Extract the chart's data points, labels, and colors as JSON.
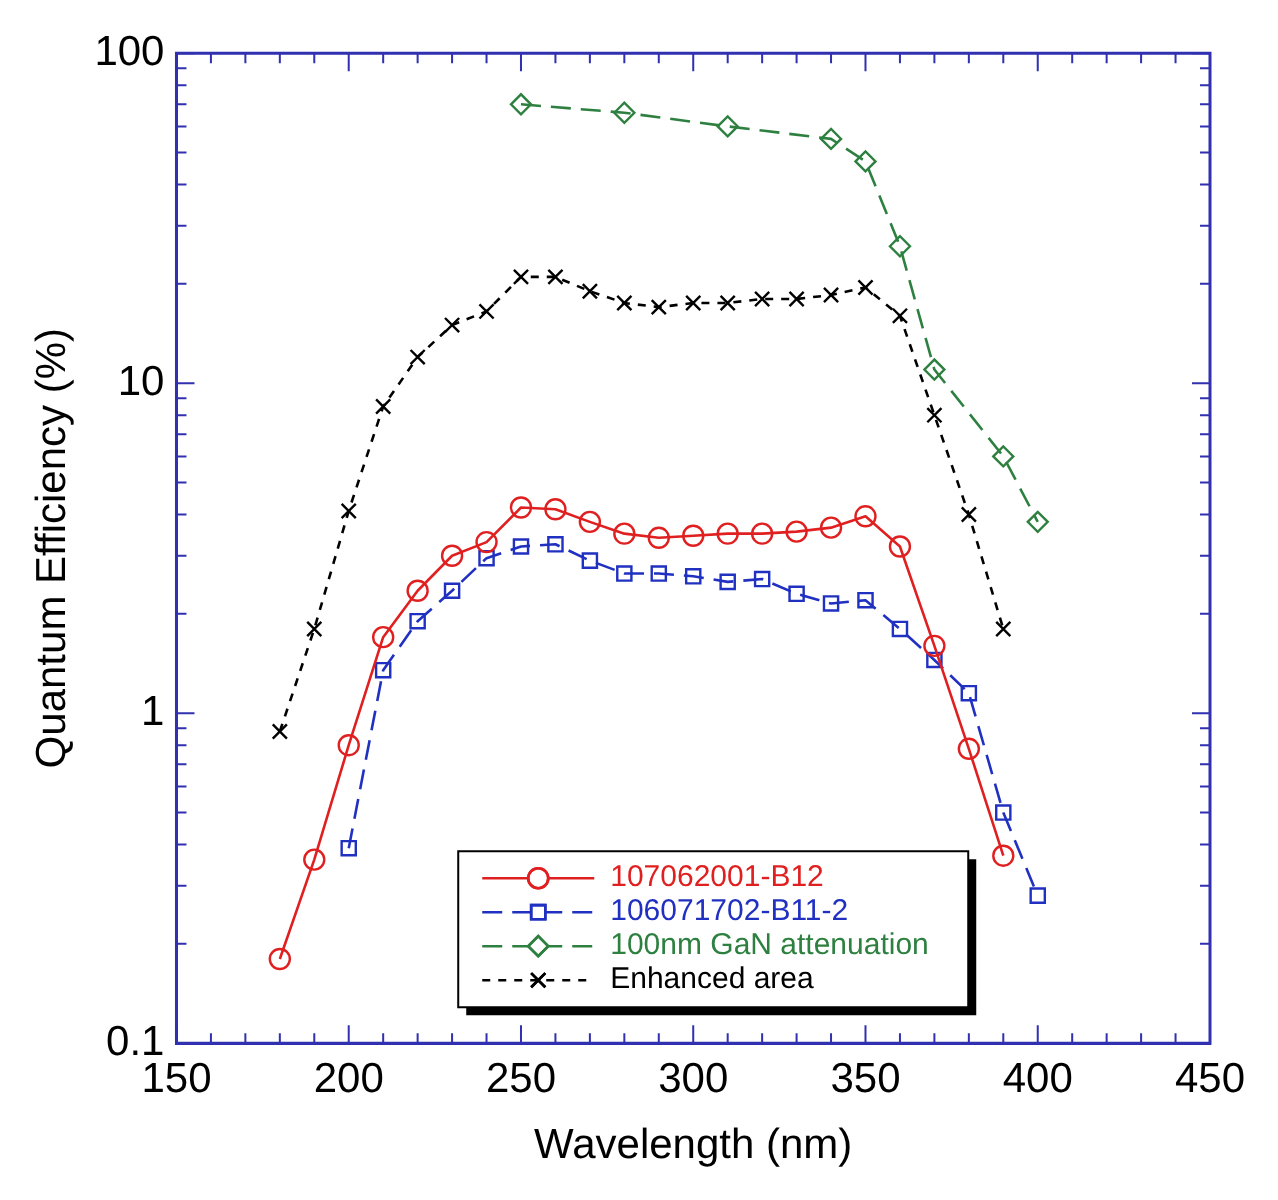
{
  "chart_data": {
    "type": "line",
    "xlabel": "Wavelength (nm)",
    "ylabel": "Quantum Efficiency (%)",
    "log": "y",
    "grid": false,
    "legend": "bottom",
    "xlim": [
      150,
      450
    ],
    "ylim": [
      0.1,
      100
    ],
    "xticks": [
      150,
      {
        "value": 160,
        "label": null
      },
      {
        "value": 170,
        "label": null
      },
      {
        "value": 180,
        "label": null
      },
      {
        "value": 190,
        "label": null
      },
      200,
      {
        "value": 210,
        "label": null
      },
      {
        "value": 220,
        "label": null
      },
      {
        "value": 230,
        "label": null
      },
      {
        "value": 240,
        "label": null
      },
      250,
      {
        "value": 260,
        "label": null
      },
      {
        "value": 270,
        "label": null
      },
      {
        "value": 280,
        "label": null
      },
      {
        "value": 290,
        "label": null
      },
      300,
      {
        "value": 310,
        "label": null
      },
      {
        "value": 320,
        "label": null
      },
      {
        "value": 330,
        "label": null
      },
      {
        "value": 340,
        "label": null
      },
      350,
      {
        "value": 360,
        "label": null
      },
      {
        "value": 370,
        "label": null
      },
      {
        "value": 380,
        "label": null
      },
      {
        "value": 390,
        "label": null
      },
      400,
      {
        "value": 410,
        "label": null
      },
      {
        "value": 420,
        "label": null
      },
      {
        "value": 430,
        "label": null
      },
      {
        "value": 440,
        "label": null
      },
      450
    ],
    "yticks": [
      0.1,
      {
        "value": 0.2,
        "label": null
      },
      {
        "value": 0.3,
        "label": null
      },
      {
        "value": 0.4,
        "label": null
      },
      {
        "value": 0.5,
        "label": null
      },
      {
        "value": 0.6,
        "label": null
      },
      {
        "value": 0.7,
        "label": null
      },
      {
        "value": 0.8,
        "label": null
      },
      {
        "value": 0.9,
        "label": null
      },
      1,
      {
        "value": 2,
        "label": null
      },
      {
        "value": 3,
        "label": null
      },
      {
        "value": 4,
        "label": null
      },
      {
        "value": 5,
        "label": null
      },
      {
        "value": 6,
        "label": null
      },
      {
        "value": 7,
        "label": null
      },
      {
        "value": 8,
        "label": null
      },
      {
        "value": 9,
        "label": null
      },
      10,
      {
        "value": 20,
        "label": null
      },
      {
        "value": 30,
        "label": null
      },
      {
        "value": 40,
        "label": null
      },
      {
        "value": 50,
        "label": null
      },
      {
        "value": 60,
        "label": null
      },
      {
        "value": 70,
        "label": null
      },
      {
        "value": 80,
        "label": null
      },
      {
        "value": 90,
        "label": null
      },
      100
    ],
    "series": [
      {
        "name": "107062001-B12",
        "color": "#e02020",
        "marker": "circle",
        "line_style": "solid",
        "x": [
          180,
          190,
          200,
          210,
          220,
          230,
          240,
          250,
          260,
          270,
          280,
          290,
          300,
          310,
          320,
          330,
          340,
          350,
          360,
          370,
          380,
          390
        ],
        "values": [
          0.18,
          0.36,
          0.8,
          1.7,
          2.35,
          3.0,
          3.3,
          4.2,
          4.15,
          3.8,
          3.5,
          3.4,
          3.45,
          3.5,
          3.5,
          3.55,
          3.65,
          3.95,
          3.2,
          1.6,
          0.78,
          0.37
        ]
      },
      {
        "name": "106071702-B11-2",
        "color": "#2030c0",
        "marker": "square",
        "line_style": "dashed",
        "x": [
          200,
          210,
          220,
          230,
          240,
          250,
          260,
          270,
          280,
          290,
          300,
          310,
          320,
          330,
          340,
          350,
          360,
          370,
          380,
          390,
          400
        ],
        "values": [
          0.39,
          1.35,
          1.9,
          2.35,
          2.95,
          3.2,
          3.25,
          2.9,
          2.65,
          2.65,
          2.6,
          2.5,
          2.55,
          2.3,
          2.15,
          2.2,
          1.8,
          1.45,
          1.15,
          0.5,
          0.28
        ]
      },
      {
        "name": "100nm GaN attenuation",
        "color": "#2e8040",
        "marker": "diamond",
        "line_style": "dashed",
        "x": [
          250,
          280,
          310,
          340,
          350,
          360,
          370,
          390,
          400
        ],
        "values": [
          70,
          66,
          60,
          55,
          47,
          26,
          11,
          6,
          3.8
        ]
      },
      {
        "name": "Enhanced area",
        "color": "#000000",
        "marker": "cross",
        "line_style": "dotted",
        "x": [
          180,
          190,
          200,
          210,
          220,
          230,
          240,
          250,
          260,
          270,
          280,
          290,
          300,
          310,
          320,
          330,
          340,
          350,
          360,
          370,
          380,
          390
        ],
        "values": [
          0.88,
          1.8,
          4.1,
          8.5,
          12,
          15,
          16.5,
          21,
          21,
          19,
          17.5,
          17,
          17.5,
          17.5,
          18,
          18,
          18.5,
          19.5,
          16,
          8,
          4,
          1.8
        ]
      }
    ]
  }
}
